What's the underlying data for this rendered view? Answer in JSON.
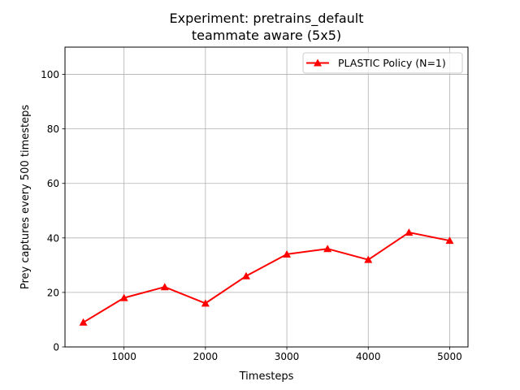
{
  "chart_data": {
    "type": "line",
    "title_line1": "Experiment: pretrains_default",
    "title_line2": "teammate aware (5x5)",
    "xlabel": "Timesteps",
    "ylabel": "Prey captures every 500 timesteps",
    "xlim": [
      275,
      5225
    ],
    "ylim": [
      0,
      110
    ],
    "xticks": [
      1000,
      2000,
      3000,
      4000,
      5000
    ],
    "yticks": [
      0,
      20,
      40,
      60,
      80,
      100
    ],
    "grid": true,
    "legend_position": "top-right",
    "series": [
      {
        "name": "PLASTIC Policy (N=1)",
        "color": "#ff0000",
        "marker": "triangle-up",
        "x": [
          500,
          1000,
          1500,
          2000,
          2500,
          3000,
          3500,
          4000,
          4500,
          5000
        ],
        "y": [
          9,
          18,
          22,
          16,
          26,
          34,
          36,
          32,
          42,
          39
        ]
      }
    ]
  }
}
